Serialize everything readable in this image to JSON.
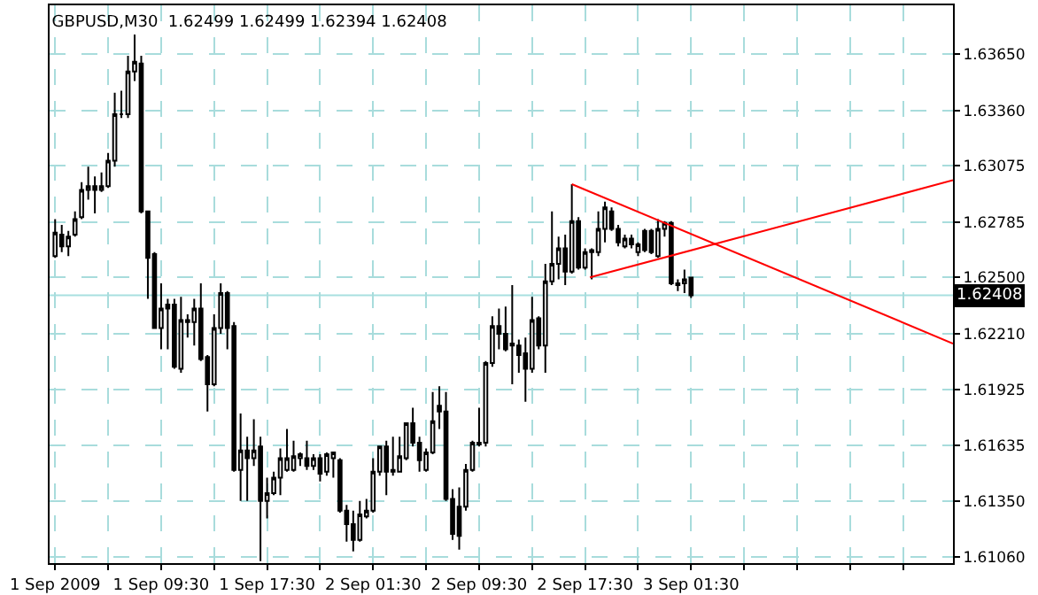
{
  "chart_data": {
    "type": "candlestick",
    "title": "GBPUSD,M30  1.62499 1.62499 1.62394 1.62408",
    "x": [
      "2009-09-01T01:30",
      "2009-09-01T02:00",
      "2009-09-01T02:30",
      "2009-09-01T03:00",
      "2009-09-01T03:30",
      "2009-09-01T04:00",
      "2009-09-01T04:30",
      "2009-09-01T05:00",
      "2009-09-01T05:30",
      "2009-09-01T06:00",
      "2009-09-01T06:30",
      "2009-09-01T07:00",
      "2009-09-01T07:30",
      "2009-09-01T08:00",
      "2009-09-01T08:30",
      "2009-09-01T09:00",
      "2009-09-01T09:30",
      "2009-09-01T10:00",
      "2009-09-01T10:30",
      "2009-09-01T11:00",
      "2009-09-01T11:30",
      "2009-09-01T12:00",
      "2009-09-01T12:30",
      "2009-09-01T13:00",
      "2009-09-01T13:30",
      "2009-09-01T14:00",
      "2009-09-01T14:30",
      "2009-09-01T15:00",
      "2009-09-01T15:30",
      "2009-09-01T16:00",
      "2009-09-01T16:30",
      "2009-09-01T17:00",
      "2009-09-01T17:30",
      "2009-09-01T18:00",
      "2009-09-01T18:30",
      "2009-09-01T19:00",
      "2009-09-01T19:30",
      "2009-09-01T20:00",
      "2009-09-01T20:30",
      "2009-09-01T21:00",
      "2009-09-01T21:30",
      "2009-09-01T22:00",
      "2009-09-01T22:30",
      "2009-09-01T23:00",
      "2009-09-01T23:30",
      "2009-09-02T00:00",
      "2009-09-02T00:30",
      "2009-09-02T01:00",
      "2009-09-02T01:30",
      "2009-09-02T02:00",
      "2009-09-02T02:30",
      "2009-09-02T03:00",
      "2009-09-02T03:30",
      "2009-09-02T04:00",
      "2009-09-02T04:30",
      "2009-09-02T05:00",
      "2009-09-02T05:30",
      "2009-09-02T06:00",
      "2009-09-02T06:30",
      "2009-09-02T07:00",
      "2009-09-02T07:30",
      "2009-09-02T08:00",
      "2009-09-02T08:30",
      "2009-09-02T09:00",
      "2009-09-02T09:30",
      "2009-09-02T10:00",
      "2009-09-02T10:30",
      "2009-09-02T11:00",
      "2009-09-02T11:30",
      "2009-09-02T12:00",
      "2009-09-02T12:30",
      "2009-09-02T13:00",
      "2009-09-02T13:30",
      "2009-09-02T14:00",
      "2009-09-02T14:30",
      "2009-09-02T15:00",
      "2009-09-02T15:30",
      "2009-09-02T16:00",
      "2009-09-02T16:30",
      "2009-09-02T17:00",
      "2009-09-02T17:30",
      "2009-09-02T18:00",
      "2009-09-02T18:30",
      "2009-09-02T19:00",
      "2009-09-02T19:30",
      "2009-09-02T20:00",
      "2009-09-02T20:30",
      "2009-09-02T21:00",
      "2009-09-02T21:30",
      "2009-09-02T22:00",
      "2009-09-02T22:30",
      "2009-09-02T23:00",
      "2009-09-02T23:30",
      "2009-09-03T00:00",
      "2009-09-03T00:30",
      "2009-09-03T01:00",
      "2009-09-03T01:30"
    ],
    "ohlc": [
      [
        1.6261,
        1.628,
        1.626,
        1.6273
      ],
      [
        1.6272,
        1.6277,
        1.6263,
        1.6266
      ],
      [
        1.6266,
        1.6274,
        1.6261,
        1.6271
      ],
      [
        1.6272,
        1.6284,
        1.6271,
        1.628
      ],
      [
        1.6281,
        1.6299,
        1.628,
        1.6295
      ],
      [
        1.6295,
        1.6307,
        1.629,
        1.6297
      ],
      [
        1.6297,
        1.6302,
        1.6283,
        1.6295
      ],
      [
        1.6295,
        1.6304,
        1.6294,
        1.6297
      ],
      [
        1.6297,
        1.6314,
        1.6296,
        1.631
      ],
      [
        1.631,
        1.6345,
        1.6307,
        1.6334
      ],
      [
        1.6334,
        1.6346,
        1.6332,
        1.6334
      ],
      [
        1.6334,
        1.6364,
        1.6332,
        1.6356
      ],
      [
        1.6356,
        1.6375,
        1.6351,
        1.6361
      ],
      [
        1.636,
        1.6364,
        1.6283,
        1.6284
      ],
      [
        1.6284,
        1.6284,
        1.6239,
        1.626
      ],
      [
        1.6262,
        1.6263,
        1.6224,
        1.6224
      ],
      [
        1.6224,
        1.6247,
        1.6213,
        1.6234
      ],
      [
        1.6236,
        1.6239,
        1.6213,
        1.6234
      ],
      [
        1.6236,
        1.6239,
        1.6203,
        1.6204
      ],
      [
        1.6203,
        1.624,
        1.6201,
        1.6228
      ],
      [
        1.6228,
        1.6231,
        1.6219,
        1.6227
      ],
      [
        1.6227,
        1.6239,
        1.6215,
        1.6234
      ],
      [
        1.6234,
        1.6247,
        1.6207,
        1.6208
      ],
      [
        1.6209,
        1.621,
        1.6181,
        1.6195
      ],
      [
        1.6195,
        1.6231,
        1.6194,
        1.6224
      ],
      [
        1.6224,
        1.6247,
        1.6221,
        1.6242
      ],
      [
        1.6242,
        1.6243,
        1.6213,
        1.6224
      ],
      [
        1.6225,
        1.6227,
        1.615,
        1.6151
      ],
      [
        1.6151,
        1.618,
        1.6135,
        1.6161
      ],
      [
        1.6161,
        1.6168,
        1.6135,
        1.6157
      ],
      [
        1.6157,
        1.6177,
        1.6153,
        1.6161
      ],
      [
        1.6163,
        1.6168,
        1.6104,
        1.6135
      ],
      [
        1.6135,
        1.6147,
        1.6126,
        1.6139
      ],
      [
        1.6139,
        1.615,
        1.6138,
        1.6147
      ],
      [
        1.6147,
        1.6162,
        1.6138,
        1.6157
      ],
      [
        1.6151,
        1.6172,
        1.615,
        1.6157
      ],
      [
        1.6151,
        1.6166,
        1.615,
        1.6158
      ],
      [
        1.6157,
        1.616,
        1.6153,
        1.6159
      ],
      [
        1.6157,
        1.6166,
        1.6151,
        1.6153
      ],
      [
        1.6153,
        1.6159,
        1.6151,
        1.6157
      ],
      [
        1.6157,
        1.6159,
        1.6145,
        1.6149
      ],
      [
        1.615,
        1.616,
        1.6148,
        1.6159
      ],
      [
        1.6157,
        1.616,
        1.6147,
        1.616
      ],
      [
        1.6156,
        1.6157,
        1.6129,
        1.613
      ],
      [
        1.613,
        1.6133,
        1.6114,
        1.6123
      ],
      [
        1.6123,
        1.613,
        1.6109,
        1.6115
      ],
      [
        1.6115,
        1.6135,
        1.6114,
        1.6128
      ],
      [
        1.6127,
        1.6136,
        1.6126,
        1.613
      ],
      [
        1.613,
        1.6157,
        1.6129,
        1.615
      ],
      [
        1.615,
        1.6163,
        1.6148,
        1.6163
      ],
      [
        1.6163,
        1.6166,
        1.6138,
        1.615
      ],
      [
        1.6151,
        1.6168,
        1.6148,
        1.615
      ],
      [
        1.615,
        1.6168,
        1.615,
        1.6158
      ],
      [
        1.6157,
        1.6175,
        1.6156,
        1.6175
      ],
      [
        1.6175,
        1.6183,
        1.6163,
        1.6165
      ],
      [
        1.6165,
        1.6168,
        1.615,
        1.6156
      ],
      [
        1.6151,
        1.6162,
        1.615,
        1.616
      ],
      [
        1.616,
        1.6191,
        1.6159,
        1.6176
      ],
      [
        1.6184,
        1.6194,
        1.6172,
        1.6181
      ],
      [
        1.6181,
        1.6191,
        1.6135,
        1.6136
      ],
      [
        1.6136,
        1.6141,
        1.6115,
        1.6118
      ],
      [
        1.6132,
        1.6142,
        1.611,
        1.6117
      ],
      [
        1.6132,
        1.6154,
        1.613,
        1.6151
      ],
      [
        1.6151,
        1.6166,
        1.615,
        1.6165
      ],
      [
        1.6164,
        1.6183,
        1.6163,
        1.6165
      ],
      [
        1.6165,
        1.6207,
        1.6163,
        1.6206
      ],
      [
        1.6206,
        1.623,
        1.6204,
        1.6225
      ],
      [
        1.6225,
        1.6234,
        1.6213,
        1.6221
      ],
      [
        1.6221,
        1.6235,
        1.6212,
        1.6213
      ],
      [
        1.6216,
        1.6246,
        1.6195,
        1.6215
      ],
      [
        1.6215,
        1.6218,
        1.6201,
        1.621
      ],
      [
        1.6211,
        1.6219,
        1.6186,
        1.6203
      ],
      [
        1.6203,
        1.624,
        1.6201,
        1.6228
      ],
      [
        1.6229,
        1.623,
        1.6213,
        1.6215
      ],
      [
        1.6215,
        1.6257,
        1.6201,
        1.6248
      ],
      [
        1.6248,
        1.6284,
        1.6246,
        1.6257
      ],
      [
        1.6257,
        1.6271,
        1.6249,
        1.6265
      ],
      [
        1.6265,
        1.6272,
        1.6246,
        1.6253
      ],
      [
        1.6253,
        1.6298,
        1.6252,
        1.6279
      ],
      [
        1.6279,
        1.6281,
        1.6254,
        1.6255
      ],
      [
        1.6255,
        1.6265,
        1.6254,
        1.6263
      ],
      [
        1.6263,
        1.6265,
        1.6249,
        1.6264
      ],
      [
        1.6263,
        1.6284,
        1.6261,
        1.6275
      ],
      [
        1.6275,
        1.6289,
        1.6268,
        1.6286
      ],
      [
        1.6284,
        1.6286,
        1.6274,
        1.6275
      ],
      [
        1.6275,
        1.6277,
        1.6266,
        1.6268
      ],
      [
        1.6266,
        1.6272,
        1.6265,
        1.627
      ],
      [
        1.627,
        1.6272,
        1.6265,
        1.6267
      ],
      [
        1.6263,
        1.6268,
        1.6261,
        1.6267
      ],
      [
        1.6274,
        1.6275,
        1.6263,
        1.6264
      ],
      [
        1.6274,
        1.6275,
        1.6262,
        1.6263
      ],
      [
        1.6261,
        1.628,
        1.626,
        1.6275
      ],
      [
        1.6275,
        1.6279,
        1.6271,
        1.6278
      ],
      [
        1.6278,
        1.6279,
        1.6246,
        1.6247
      ],
      [
        1.6247,
        1.6249,
        1.6243,
        1.6246
      ],
      [
        1.6247,
        1.6254,
        1.6242,
        1.6249
      ],
      [
        1.62499,
        1.62499,
        1.62394,
        1.62408
      ]
    ],
    "color": "#000000",
    "series": [
      {
        "type": "line",
        "color": "#ff0000",
        "x": [
          "2009-09-02T16:30",
          "2009-09-03T21:16"
        ],
        "values": [
          1.6298,
          1.6216
        ]
      },
      {
        "type": "line",
        "color": "#ff0000",
        "x": [
          "2009-09-02T17:52",
          "2009-09-03T21:16"
        ],
        "values": [
          1.625,
          1.63
        ]
      }
    ],
    "xlim": [
      "2009-09-01T01:05",
      "2009-09-03T21:16"
    ],
    "xticks": [
      {
        "value": "2009-09-01T01:30",
        "label": "1 Sep 2009"
      },
      {
        "value": "2009-09-01T05:30",
        "label": null
      },
      {
        "value": "2009-09-01T09:30",
        "label": "1 Sep 09:30"
      },
      {
        "value": "2009-09-01T13:30",
        "label": null
      },
      {
        "value": "2009-09-01T17:30",
        "label": "1 Sep 17:30"
      },
      {
        "value": "2009-09-01T21:30",
        "label": null
      },
      {
        "value": "2009-09-02T01:30",
        "label": "2 Sep 01:30"
      },
      {
        "value": "2009-09-02T05:30",
        "label": null
      },
      {
        "value": "2009-09-02T09:30",
        "label": "2 Sep 09:30"
      },
      {
        "value": "2009-09-02T13:30",
        "label": null
      },
      {
        "value": "2009-09-02T17:30",
        "label": "2 Sep 17:30"
      },
      {
        "value": "2009-09-02T21:30",
        "label": null
      },
      {
        "value": "2009-09-03T01:30",
        "label": "3 Sep 01:30"
      },
      {
        "value": "2009-09-03T05:30",
        "label": null
      },
      {
        "value": "2009-09-03T09:30",
        "label": null
      },
      {
        "value": "2009-09-03T13:30",
        "label": null
      },
      {
        "value": "2009-09-03T17:30",
        "label": null
      }
    ],
    "ylim": [
      1.6103,
      1.639
    ],
    "yticks": [
      {
        "value": 1.6106,
        "label": "1.61060"
      },
      {
        "value": 1.6135,
        "label": "1.61350"
      },
      {
        "value": 1.61635,
        "label": "1.61635"
      },
      {
        "value": 1.61925,
        "label": "1.61925"
      },
      {
        "value": 1.6221,
        "label": "1.62210"
      },
      {
        "value": 1.625,
        "label": "1.62500"
      },
      {
        "value": 1.62785,
        "label": "1.62785"
      },
      {
        "value": 1.63075,
        "label": "1.63075"
      },
      {
        "value": 1.6336,
        "label": "1.63360"
      },
      {
        "value": 1.6365,
        "label": "1.63650"
      }
    ],
    "grid": true,
    "ref_lines": [
      {
        "axis": "y",
        "value": 1.62408,
        "label": "1.62408",
        "color": "#a8e0e0"
      }
    ]
  }
}
